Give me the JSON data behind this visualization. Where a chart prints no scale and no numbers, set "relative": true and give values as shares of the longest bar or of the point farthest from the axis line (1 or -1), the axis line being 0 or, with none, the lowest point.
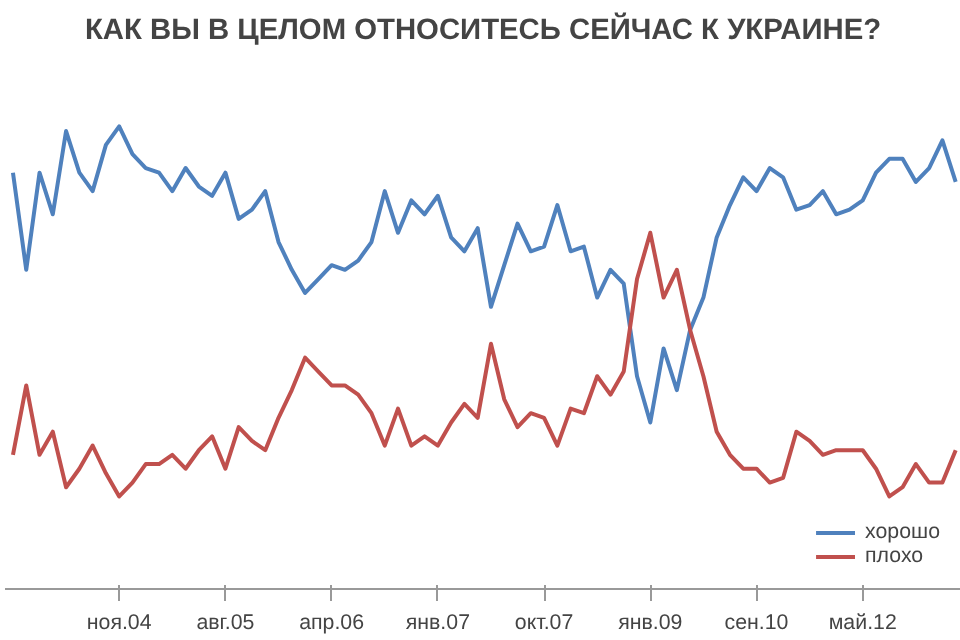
{
  "chart_data": {
    "type": "line",
    "title": "КАК ВЫ В ЦЕЛОМ ОТНОСИТЕСЬ СЕЙЧАС К УКРАИНЕ?",
    "relative": true,
    "legend": "bottom right",
    "marker": "none",
    "line_style": "solid",
    "categories": [
      null,
      null,
      null,
      null,
      null,
      null,
      null,
      null,
      "ноя.04",
      null,
      null,
      null,
      null,
      null,
      null,
      null,
      "авг.05",
      null,
      null,
      null,
      null,
      null,
      null,
      null,
      "апр.06",
      null,
      null,
      null,
      null,
      null,
      null,
      null,
      "янв.07",
      null,
      null,
      null,
      null,
      null,
      null,
      null,
      "окт.07",
      null,
      null,
      null,
      null,
      null,
      null,
      null,
      "янв.09",
      null,
      null,
      null,
      null,
      null,
      null,
      null,
      "сен.10",
      null,
      null,
      null,
      null,
      null,
      null,
      null,
      "май.12",
      null,
      null,
      null,
      null,
      null,
      null,
      null
    ],
    "series": [
      {
        "name": "хорошо",
        "color": "#4f81bd",
        "values": [
          0.9,
          0.69,
          0.9,
          0.81,
          0.99,
          0.9,
          0.86,
          0.96,
          1.0,
          0.94,
          0.91,
          0.9,
          0.86,
          0.91,
          0.87,
          0.85,
          0.9,
          0.8,
          0.82,
          0.86,
          0.75,
          0.69,
          0.64,
          0.67,
          0.7,
          0.69,
          0.71,
          0.75,
          0.86,
          0.77,
          0.84,
          0.81,
          0.85,
          0.76,
          0.73,
          0.78,
          0.61,
          0.7,
          0.79,
          0.73,
          0.74,
          0.83,
          0.73,
          0.74,
          0.63,
          0.69,
          0.66,
          0.46,
          0.36,
          0.52,
          0.43,
          0.56,
          0.63,
          0.76,
          0.83,
          0.89,
          0.86,
          0.91,
          0.89,
          0.82,
          0.83,
          0.86,
          0.81,
          0.82,
          0.84,
          0.9,
          0.93,
          0.93,
          0.88,
          0.91,
          0.97,
          0.88
        ]
      },
      {
        "name": "плохо",
        "color": "#c0504d",
        "values": [
          0.29,
          0.44,
          0.29,
          0.34,
          0.22,
          0.26,
          0.31,
          0.25,
          0.2,
          0.23,
          0.27,
          0.27,
          0.29,
          0.26,
          0.3,
          0.33,
          0.26,
          0.35,
          0.32,
          0.3,
          0.37,
          0.43,
          0.5,
          0.47,
          0.44,
          0.44,
          0.42,
          0.38,
          0.31,
          0.39,
          0.31,
          0.33,
          0.31,
          0.36,
          0.4,
          0.37,
          0.53,
          0.41,
          0.35,
          0.38,
          0.37,
          0.31,
          0.39,
          0.38,
          0.46,
          0.42,
          0.47,
          0.67,
          0.77,
          0.63,
          0.69,
          0.56,
          0.46,
          0.34,
          0.29,
          0.26,
          0.26,
          0.23,
          0.24,
          0.34,
          0.32,
          0.29,
          0.3,
          0.3,
          0.3,
          0.26,
          0.2,
          0.22,
          0.27,
          0.23,
          0.23,
          0.3
        ]
      }
    ]
  }
}
